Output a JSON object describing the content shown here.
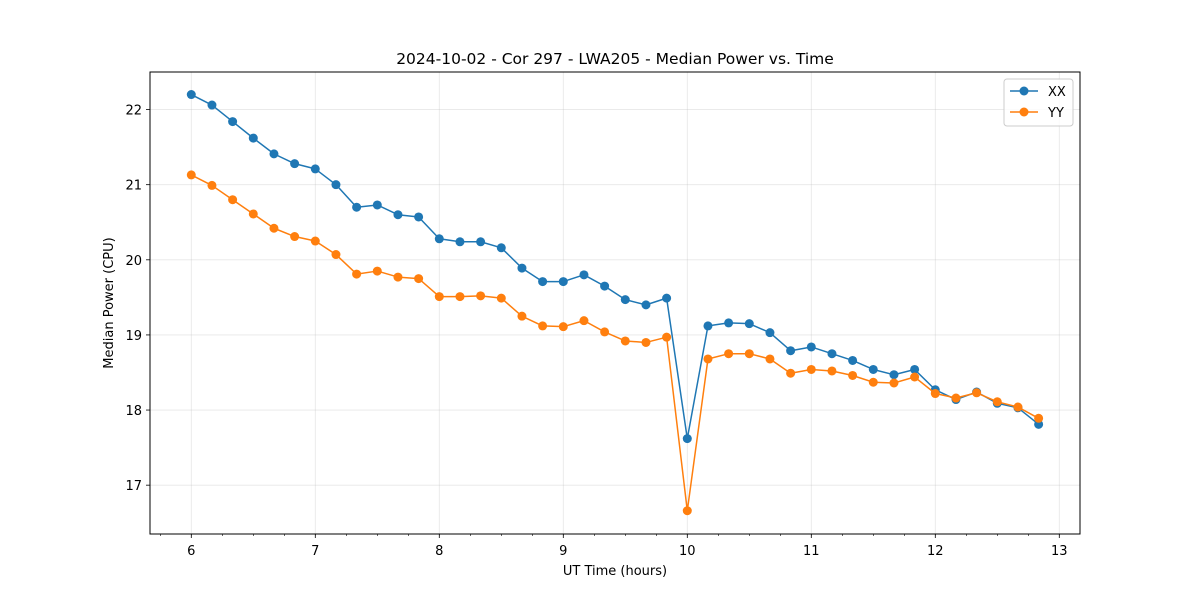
{
  "chart_data": {
    "type": "line",
    "title": "2024-10-02 - Cor 297 - LWA205 - Median Power vs. Time",
    "xlabel": "UT Time (hours)",
    "ylabel": "Median Power (CPU)",
    "xlim": [
      5.667,
      13.167
    ],
    "ylim": [
      16.35,
      22.5
    ],
    "xticks": [
      6,
      7,
      8,
      9,
      10,
      11,
      12,
      13
    ],
    "yticks": [
      17,
      18,
      19,
      20,
      21,
      22
    ],
    "x_minor_step": 0.25,
    "grid": true,
    "legend_position": "top-right",
    "x": [
      6.0,
      6.1667,
      6.3333,
      6.5,
      6.6667,
      6.8333,
      7.0,
      7.1667,
      7.3333,
      7.5,
      7.6667,
      7.8333,
      8.0,
      8.1667,
      8.3333,
      8.5,
      8.6667,
      8.8333,
      9.0,
      9.1667,
      9.3333,
      9.5,
      9.6667,
      9.8333,
      10.0,
      10.1667,
      10.3333,
      10.5,
      10.6667,
      10.8333,
      11.0,
      11.1667,
      11.3333,
      11.5,
      11.6667,
      11.8333,
      12.0,
      12.1667,
      12.3333,
      12.5,
      12.6667,
      12.8333
    ],
    "series": [
      {
        "name": "XX",
        "color": "#1f77b4",
        "values": [
          22.2,
          22.06,
          21.84,
          21.62,
          21.41,
          21.28,
          21.21,
          21.0,
          20.7,
          20.73,
          20.6,
          20.57,
          20.28,
          20.24,
          20.24,
          20.16,
          19.89,
          19.71,
          19.71,
          19.8,
          19.65,
          19.47,
          19.4,
          19.49,
          17.62,
          19.12,
          19.16,
          19.15,
          19.03,
          18.79,
          18.84,
          18.75,
          18.66,
          18.54,
          18.47,
          18.54,
          18.27,
          18.14,
          18.24,
          18.09,
          18.03,
          17.81
        ]
      },
      {
        "name": "YY",
        "color": "#ff7f0e",
        "values": [
          21.13,
          20.99,
          20.8,
          20.61,
          20.42,
          20.31,
          20.25,
          20.07,
          19.81,
          19.85,
          19.77,
          19.75,
          19.51,
          19.51,
          19.52,
          19.49,
          19.25,
          19.12,
          19.11,
          19.19,
          19.04,
          18.92,
          18.9,
          18.97,
          16.66,
          18.68,
          18.75,
          18.75,
          18.68,
          18.49,
          18.54,
          18.52,
          18.46,
          18.37,
          18.36,
          18.44,
          18.22,
          18.16,
          18.23,
          18.11,
          18.04,
          17.89
        ]
      }
    ]
  }
}
